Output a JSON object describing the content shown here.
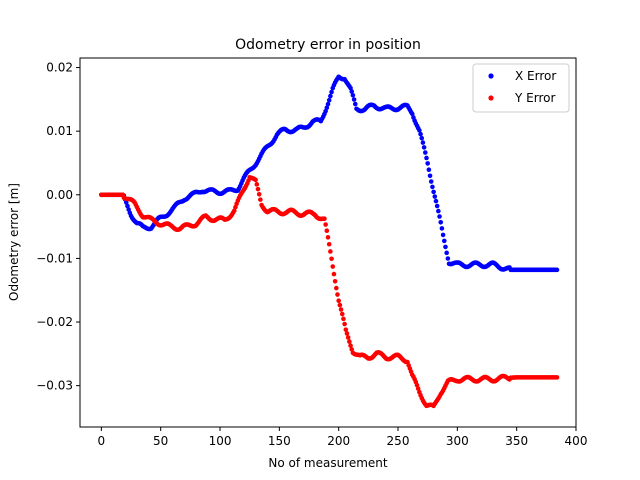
{
  "chart_data": {
    "type": "scatter",
    "title": "Odometry error in position",
    "xlabel": "No of measurement",
    "ylabel": "Odometry error [m]",
    "xlim": [
      -18,
      400
    ],
    "ylim": [
      -0.0365,
      0.0215
    ],
    "xticks": [
      0,
      50,
      100,
      150,
      200,
      250,
      300,
      350,
      400
    ],
    "yticks": [
      0.02,
      0.01,
      0.0,
      -0.01,
      -0.02,
      -0.03
    ],
    "xtick_labels": [
      "0",
      "50",
      "100",
      "150",
      "200",
      "250",
      "300",
      "350",
      "400"
    ],
    "ytick_labels": [
      "0.02",
      "0.01",
      "0.00",
      "−0.01",
      "−0.02",
      "−0.03"
    ],
    "grid": false,
    "legend_position": "upper-right",
    "series": [
      {
        "name": "X Error",
        "color": "#0000ff",
        "keypoints": [
          [
            0,
            0.0
          ],
          [
            18,
            0.0
          ],
          [
            20,
            -0.001
          ],
          [
            25,
            -0.003
          ],
          [
            30,
            -0.0045
          ],
          [
            35,
            -0.0052
          ],
          [
            42,
            -0.005
          ],
          [
            48,
            -0.004
          ],
          [
            55,
            -0.003
          ],
          [
            62,
            -0.002
          ],
          [
            70,
            -0.0005
          ],
          [
            78,
            0.0
          ],
          [
            85,
            0.0008
          ],
          [
            92,
            0.0005
          ],
          [
            100,
            0.0005
          ],
          [
            108,
            0.0005
          ],
          [
            115,
            0.001
          ],
          [
            120,
            0.0025
          ],
          [
            130,
            0.005
          ],
          [
            140,
            0.0075
          ],
          [
            148,
            0.0095
          ],
          [
            155,
            0.0102
          ],
          [
            165,
            0.0102
          ],
          [
            170,
            0.0105
          ],
          [
            178,
            0.0115
          ],
          [
            185,
            0.0115
          ],
          [
            190,
            0.014
          ],
          [
            195,
            0.0165
          ],
          [
            200,
            0.0185
          ],
          [
            205,
            0.0185
          ],
          [
            210,
            0.0165
          ],
          [
            215,
            0.0135
          ],
          [
            222,
            0.0135
          ],
          [
            230,
            0.014
          ],
          [
            240,
            0.0135
          ],
          [
            250,
            0.0137
          ],
          [
            258,
            0.0138
          ],
          [
            262,
            0.013
          ],
          [
            268,
            0.01
          ],
          [
            275,
            0.005
          ],
          [
            282,
            -0.001
          ],
          [
            288,
            -0.0065
          ],
          [
            293,
            -0.0105
          ],
          [
            300,
            -0.011
          ],
          [
            310,
            -0.011
          ],
          [
            320,
            -0.011
          ],
          [
            330,
            -0.011
          ],
          [
            340,
            -0.0115
          ],
          [
            345,
            -0.0118
          ],
          [
            360,
            -0.0118
          ],
          [
            384,
            -0.0118
          ]
        ]
      },
      {
        "name": "Y Error",
        "color": "#ff0000",
        "keypoints": [
          [
            0,
            0.0
          ],
          [
            18,
            0.0
          ],
          [
            22,
            -0.0005
          ],
          [
            28,
            -0.0015
          ],
          [
            35,
            -0.0032
          ],
          [
            42,
            -0.004
          ],
          [
            50,
            -0.0045
          ],
          [
            58,
            -0.005
          ],
          [
            66,
            -0.0052
          ],
          [
            72,
            -0.005
          ],
          [
            80,
            -0.0045
          ],
          [
            88,
            -0.0035
          ],
          [
            95,
            -0.0038
          ],
          [
            104,
            -0.004
          ],
          [
            112,
            -0.0025
          ],
          [
            118,
            0.0
          ],
          [
            125,
            0.003
          ],
          [
            130,
            0.002
          ],
          [
            135,
            -0.0015
          ],
          [
            140,
            -0.0025
          ],
          [
            150,
            -0.0027
          ],
          [
            160,
            -0.0027
          ],
          [
            170,
            -0.003
          ],
          [
            180,
            -0.003
          ],
          [
            188,
            -0.004
          ],
          [
            194,
            -0.01
          ],
          [
            200,
            -0.0165
          ],
          [
            206,
            -0.0215
          ],
          [
            212,
            -0.0245
          ],
          [
            218,
            -0.0255
          ],
          [
            225,
            -0.0255
          ],
          [
            232,
            -0.025
          ],
          [
            240,
            -0.0255
          ],
          [
            250,
            -0.0255
          ],
          [
            258,
            -0.026
          ],
          [
            262,
            -0.0285
          ],
          [
            268,
            -0.031
          ],
          [
            274,
            -0.033
          ],
          [
            280,
            -0.0335
          ],
          [
            286,
            -0.031
          ],
          [
            292,
            -0.0295
          ],
          [
            300,
            -0.029
          ],
          [
            310,
            -0.029
          ],
          [
            320,
            -0.029
          ],
          [
            330,
            -0.029
          ],
          [
            340,
            -0.0288
          ],
          [
            350,
            -0.0287
          ],
          [
            384,
            -0.0287
          ]
        ]
      }
    ]
  }
}
